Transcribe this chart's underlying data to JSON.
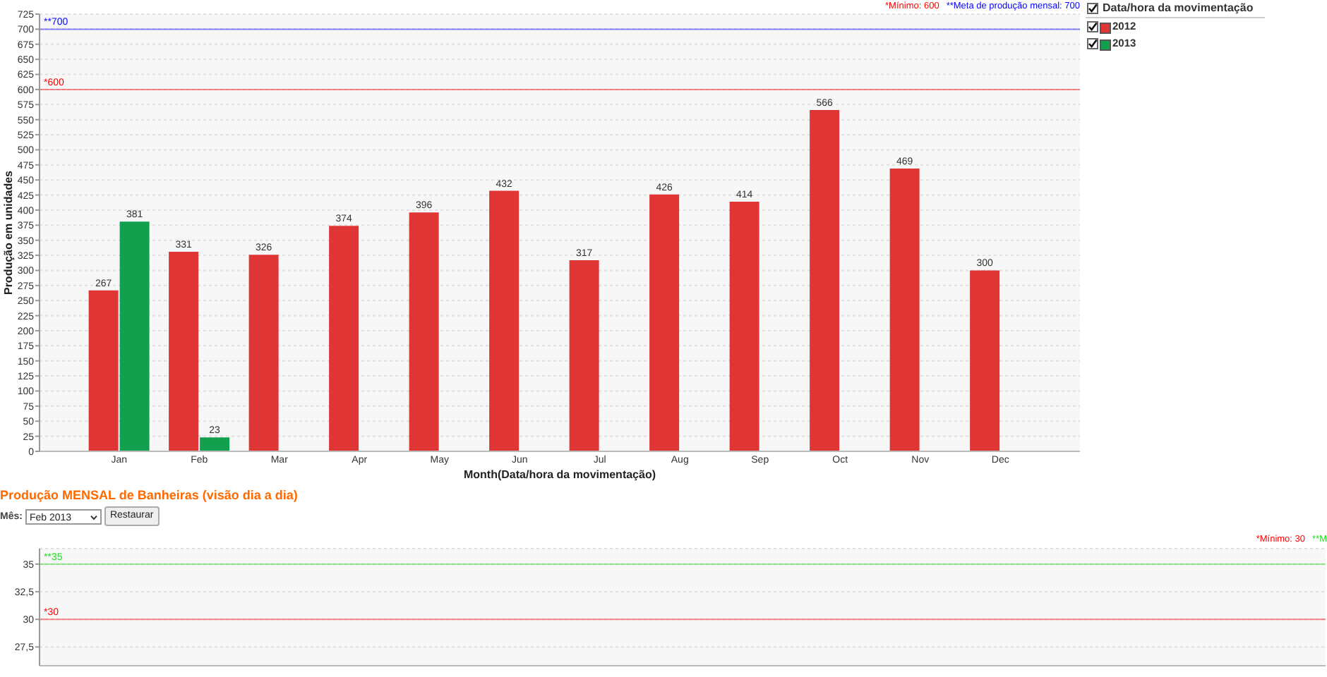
{
  "chart_data": [
    {
      "type": "bar",
      "categories": [
        "Jan",
        "Feb",
        "Mar",
        "Apr",
        "May",
        "Jun",
        "Jul",
        "Aug",
        "Sep",
        "Oct",
        "Nov",
        "Dec"
      ],
      "series": [
        {
          "name": "2012",
          "color": "#e03535",
          "values": [
            267,
            331,
            326,
            374,
            396,
            432,
            317,
            426,
            414,
            566,
            469,
            300
          ]
        },
        {
          "name": "2013",
          "color": "#12a04e",
          "values": [
            381,
            23,
            null,
            null,
            null,
            null,
            null,
            null,
            null,
            null,
            null,
            null
          ]
        }
      ],
      "xlabel": "Month(Data/hora da movimentação)",
      "ylabel": "Produção em unidades",
      "ylim": [
        0,
        725
      ],
      "yticks": [
        0,
        25,
        50,
        75,
        100,
        125,
        150,
        175,
        200,
        225,
        250,
        275,
        300,
        325,
        350,
        375,
        400,
        425,
        450,
        475,
        500,
        525,
        550,
        575,
        600,
        625,
        650,
        675,
        700,
        725
      ],
      "grid": "y",
      "legend": "top right",
      "legend_title": "Data/hora da movimentação",
      "data_labels": true,
      "ref_lines": [
        {
          "axis": "y",
          "value": 600,
          "label": "*600",
          "color": "#ff0000"
        },
        {
          "axis": "y",
          "value": 700,
          "label": "**700",
          "color": "#0000ff"
        }
      ],
      "annotations": [
        "*Mínimo: 600",
        "**Meta de produção mensal: 700"
      ]
    },
    {
      "type": "bar",
      "title": "Produção MENSAL de Banheiras (visão dia a dia)",
      "categories": [
        null
      ],
      "values": [
        null
      ],
      "ylim": [
        25.8,
        36.4
      ],
      "yticks": [
        {
          "value": 27.5,
          "label": "27,5"
        },
        30,
        {
          "value": 32.5,
          "label": "32,5"
        },
        35
      ],
      "grid": "y",
      "tick_labels": "y",
      "ref_lines": [
        {
          "axis": "y",
          "value": 30,
          "label": "*30",
          "color": "#ff0000"
        },
        {
          "axis": "y",
          "value": 35,
          "label": "**35",
          "color": "#22dd22"
        }
      ],
      "annotations": [
        "*Mínimo: 30",
        "**M",
        "Mês:",
        "Feb 2013",
        "Restaurar"
      ]
    }
  ]
}
